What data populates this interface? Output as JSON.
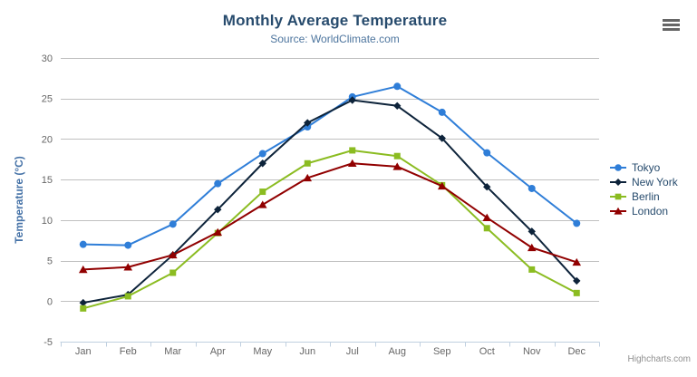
{
  "chart_data": {
    "type": "line",
    "title": "Monthly Average Temperature",
    "subtitle": "Source: WorldClimate.com",
    "xlabel": "",
    "ylabel": "Temperature (°C)",
    "ylim": [
      -5,
      30
    ],
    "yticks": [
      -5,
      0,
      5,
      10,
      15,
      20,
      25,
      30
    ],
    "grid": true,
    "legend_position": "right",
    "categories": [
      "Jan",
      "Feb",
      "Mar",
      "Apr",
      "May",
      "Jun",
      "Jul",
      "Aug",
      "Sep",
      "Oct",
      "Nov",
      "Dec"
    ],
    "series": [
      {
        "name": "Tokyo",
        "color": "#2f7ed8",
        "marker": "circle",
        "values": [
          7.0,
          6.9,
          9.5,
          14.5,
          18.2,
          21.5,
          25.2,
          26.5,
          23.3,
          18.3,
          13.9,
          9.6
        ]
      },
      {
        "name": "New York",
        "color": "#0d233a",
        "marker": "diamond",
        "values": [
          -0.2,
          0.8,
          5.7,
          11.3,
          17.0,
          22.0,
          24.8,
          24.1,
          20.1,
          14.1,
          8.6,
          2.5
        ]
      },
      {
        "name": "Berlin",
        "color": "#8bbc21",
        "marker": "square",
        "values": [
          -0.9,
          0.6,
          3.5,
          8.4,
          13.5,
          17.0,
          18.6,
          17.9,
          14.3,
          9.0,
          3.9,
          1.0
        ]
      },
      {
        "name": "London",
        "color": "#910000",
        "marker": "triangle",
        "values": [
          3.9,
          4.2,
          5.7,
          8.5,
          11.9,
          15.2,
          17.0,
          16.6,
          14.2,
          10.3,
          6.6,
          4.8
        ]
      }
    ],
    "credit": "Highcharts.com",
    "palette": {
      "title": "#274b6d",
      "subtitle": "#4d759e",
      "axis_label": "#666666",
      "yaxis_title": "#4572a7",
      "gridline": "#c0c0c0",
      "axis_line": "#c0d0e0",
      "legend_text": "#274b6d",
      "credit": "#909090",
      "menu_icon": "#666666"
    }
  }
}
